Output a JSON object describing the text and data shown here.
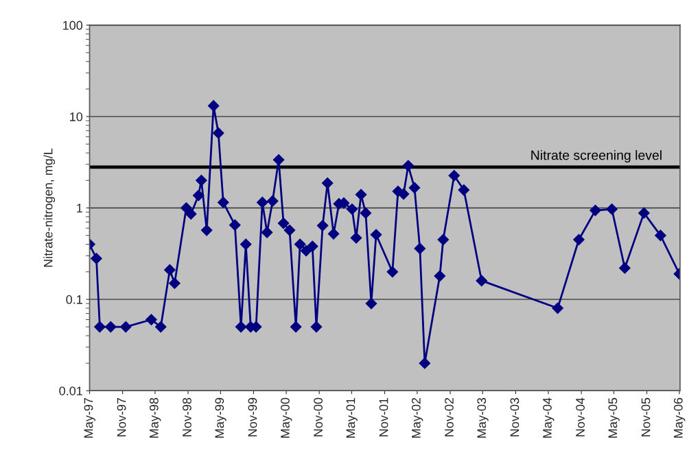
{
  "chart_data": {
    "type": "line",
    "ylabel": "Nitrate-nitrogen, mg/L",
    "log": "y",
    "grid": "y",
    "marker": "diamond",
    "line_style": "solid",
    "x": [
      "1997-05-01",
      "1997-06-08",
      "1997-06-27",
      "1997-08-27",
      "1997-11-19",
      "1998-04-10",
      "1998-06-02",
      "1998-07-22",
      "1998-08-18",
      "1998-10-22",
      "1998-11-17",
      "1998-12-29",
      "1999-01-14",
      "1999-02-13",
      "1999-03-23",
      "1999-04-19",
      "1999-05-16",
      "1999-07-20",
      "1999-08-23",
      "1999-09-19",
      "1999-10-16",
      "1999-11-15",
      "1999-12-20",
      "2000-01-15",
      "2000-02-15",
      "2000-03-20",
      "2000-04-16",
      "2000-05-20",
      "2000-06-24",
      "2000-07-17",
      "2000-08-20",
      "2000-09-24",
      "2000-10-16",
      "2000-11-20",
      "2000-12-17",
      "2001-01-20",
      "2001-02-19",
      "2001-03-18",
      "2001-05-03",
      "2001-05-26",
      "2001-06-22",
      "2001-07-18",
      "2001-08-18",
      "2001-09-14",
      "2001-12-14",
      "2002-01-14",
      "2002-02-14",
      "2002-03-12",
      "2002-04-16",
      "2002-05-16",
      "2002-06-12",
      "2002-09-04",
      "2002-09-23",
      "2002-11-23",
      "2003-01-16",
      "2003-04-25",
      "2004-06-22",
      "2004-10-18",
      "2005-01-18",
      "2005-04-20",
      "2005-07-01",
      "2005-10-16",
      "2006-01-16",
      "2006-05-01"
    ],
    "series": [
      {
        "color": "#000080",
        "values": [
          0.4,
          0.28,
          0.05,
          0.05,
          0.05,
          0.06,
          0.05,
          0.21,
          0.15,
          1.0,
          0.86,
          1.37,
          2.0,
          0.57,
          13.1,
          6.6,
          1.15,
          0.65,
          0.05,
          0.4,
          0.05,
          0.05,
          1.15,
          0.54,
          1.19,
          3.36,
          0.68,
          0.57,
          0.05,
          0.4,
          0.34,
          0.38,
          0.05,
          0.64,
          1.87,
          0.52,
          1.11,
          1.13,
          0.97,
          0.47,
          1.4,
          0.88,
          0.09,
          0.51,
          0.2,
          1.52,
          1.42,
          2.9,
          1.66,
          0.36,
          0.02,
          0.18,
          0.45,
          2.26,
          1.57,
          0.16,
          0.08,
          0.45,
          0.94,
          0.97,
          0.22,
          0.88,
          0.5,
          0.19
        ]
      }
    ],
    "ylim": [
      0.01,
      100
    ],
    "yticks": [
      0.01,
      0.1,
      1,
      10,
      100
    ],
    "xlim": [
      "1997-05-01",
      "2006-05-05"
    ],
    "xticks": [
      {
        "value": "1997-05-01",
        "label": "May-97"
      },
      {
        "value": "1997-11-01",
        "label": "Nov-97"
      },
      {
        "value": "1998-05-01",
        "label": "May-98"
      },
      {
        "value": "1998-11-01",
        "label": "Nov-98"
      },
      {
        "value": "1999-05-01",
        "label": "May-99"
      },
      {
        "value": "1999-11-01",
        "label": "Nov-99"
      },
      {
        "value": "2000-05-01",
        "label": "May-00"
      },
      {
        "value": "2000-11-01",
        "label": "Nov-00"
      },
      {
        "value": "2001-05-01",
        "label": "May-01"
      },
      {
        "value": "2001-11-01",
        "label": "Nov-01"
      },
      {
        "value": "2002-05-01",
        "label": "May-02"
      },
      {
        "value": "2002-11-01",
        "label": "Nov-02"
      },
      {
        "value": "2003-05-01",
        "label": "May-03"
      },
      {
        "value": "2003-11-01",
        "label": "Nov-03"
      },
      {
        "value": "2004-05-01",
        "label": "May-04"
      },
      {
        "value": "2004-11-01",
        "label": "Nov-04"
      },
      {
        "value": "2005-05-01",
        "label": "May-05"
      },
      {
        "value": "2005-11-01",
        "label": "Nov-05"
      },
      {
        "value": "2006-05-01",
        "label": "May-06"
      }
    ],
    "ref_lines": [
      {
        "axis": "y",
        "value": 2.8,
        "label": "Nitrate screening level",
        "color": "#000000"
      }
    ]
  }
}
